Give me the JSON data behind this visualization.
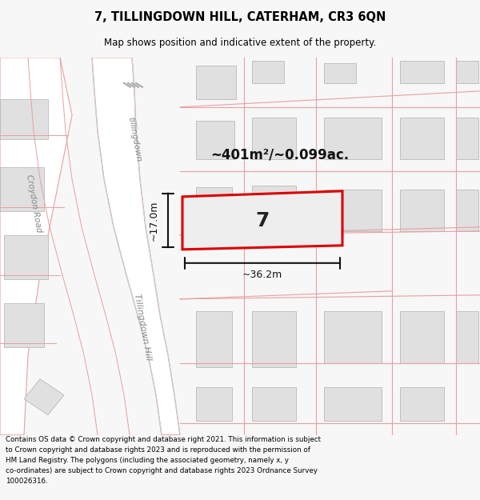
{
  "title": "7, TILLINGDOWN HILL, CATERHAM, CR3 6QN",
  "subtitle": "Map shows position and indicative extent of the property.",
  "area_label": "~401m²/~0.099ac.",
  "width_label": "~36.2m",
  "height_label": "~17.0m",
  "property_number": "7",
  "footer": "Contains OS data © Crown copyright and database right 2021. This information is subject\nto Crown copyright and database rights 2023 and is reproduced with the permission of\nHM Land Registry. The polygons (including the associated geometry, namely x, y\nco-ordinates) are subject to Crown copyright and database rights 2023 Ordnance Survey\n100026316.",
  "bg_color": "#f7f7f7",
  "map_bg": "#f9f9f9",
  "road_line_color": "#e8a0a0",
  "building_color": "#e0e0e0",
  "road_area_color": "#ffffff",
  "property_fill": "#eeeeee",
  "property_edge": "#dd0000",
  "title_color": "#000000",
  "footer_color": "#000000",
  "dim_line_color": "#111111"
}
